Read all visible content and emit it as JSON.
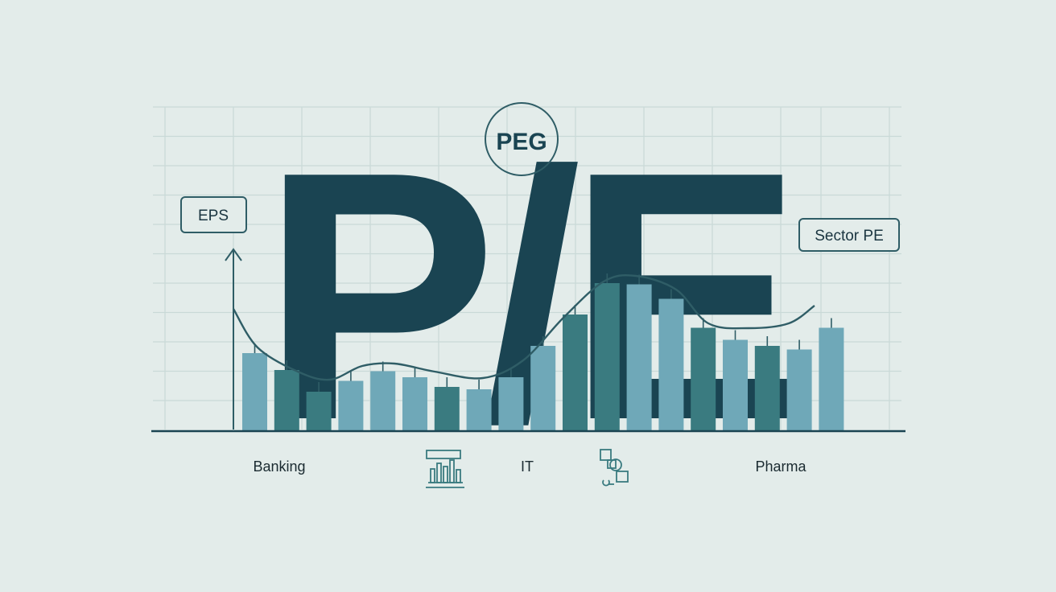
{
  "headline": {
    "text": "P/E"
  },
  "tags": {
    "peg": "PEG",
    "eps": "EPS",
    "sector_pe": "Sector PE"
  },
  "sectors": [
    "Banking",
    "IT",
    "Pharma"
  ],
  "icons": [
    "bar-chart-icon",
    "network-nodes-icon"
  ],
  "colors": {
    "background": "#e3ecea",
    "dark_teal": "#1a4452",
    "mid_teal": "#3a7b80",
    "light_teal": "#6fa8b8",
    "grid": "#c9d9d7",
    "tag_border": "#2f5d66"
  },
  "chart_data": {
    "type": "bar",
    "values": [
      0.64,
      0.5,
      0.32,
      0.41,
      0.49,
      0.44,
      0.36,
      0.34,
      0.44,
      0.7,
      0.96,
      1.22,
      1.21,
      1.09,
      0.85,
      0.75,
      0.7,
      0.67,
      0.85
    ],
    "bar_tones": [
      "light",
      "mid",
      "mid",
      "light",
      "light",
      "light",
      "mid",
      "light",
      "light",
      "light",
      "mid",
      "mid",
      "light",
      "light",
      "mid",
      "light",
      "mid",
      "light",
      "light"
    ],
    "trend": "smooth curve above bars: falling, shallow dip, rising to peak, then easing"
  }
}
